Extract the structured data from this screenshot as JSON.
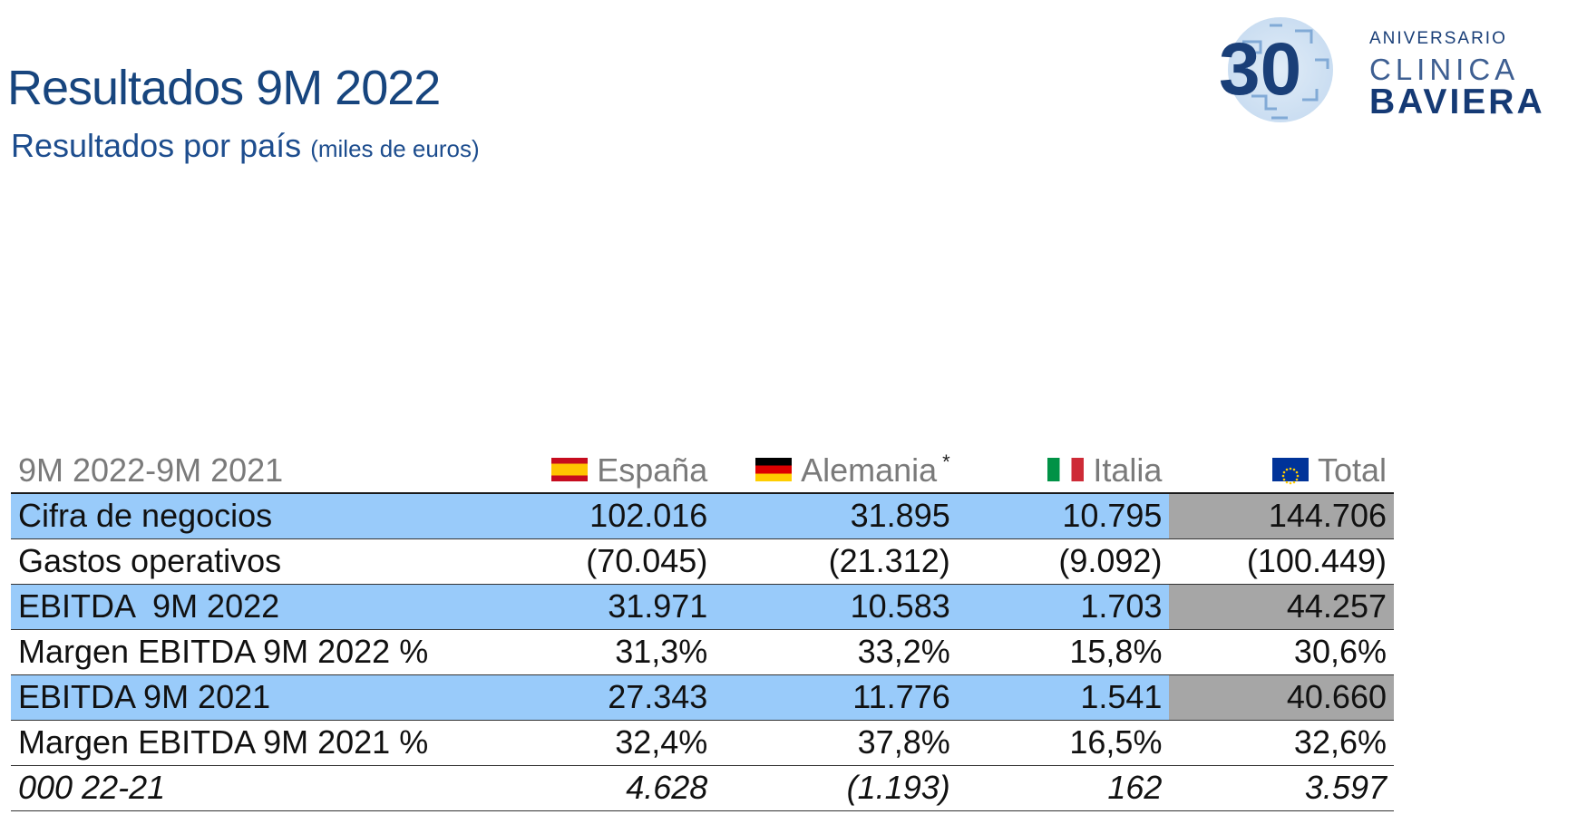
{
  "header": {
    "title": "Resultados 9M 2022",
    "subtitle": "Resultados por país",
    "unit": "(miles de euros)"
  },
  "logo": {
    "number": "30",
    "line1": "ANIVERSARIO",
    "line2": "CLINICA",
    "line3": "BAVIERA"
  },
  "colors": {
    "title": "#17457e",
    "highlight_row": "#99cbfa",
    "total_highlight": "#a6a6a6"
  },
  "table": {
    "period_label": "9M 2022-9M 2021",
    "columns": [
      {
        "label": "España",
        "flag": "spain-flag-icon"
      },
      {
        "label": "Alemania",
        "flag": "germany-flag-icon",
        "note": "*"
      },
      {
        "label": "Italia",
        "flag": "italy-flag-icon"
      },
      {
        "label": "Total",
        "flag": "eu-flag-icon"
      }
    ],
    "rows": [
      {
        "label": "Cifra de negocios",
        "values": [
          "102.016",
          "31.895",
          "10.795",
          "144.706"
        ]
      },
      {
        "label": "Gastos operativos",
        "values": [
          "(70.045)",
          "(21.312)",
          "(9.092)",
          "(100.449)"
        ]
      },
      {
        "label": "EBITDA  9M 2022",
        "values": [
          "31.971",
          "10.583",
          "1.703",
          "44.257"
        ]
      },
      {
        "label": "Margen EBITDA 9M 2022 %",
        "values": [
          "31,3%",
          "33,2%",
          "15,8%",
          "30,6%"
        ]
      },
      {
        "label": "EBITDA 9M 2021",
        "values": [
          "27.343",
          "11.776",
          "1.541",
          "40.660"
        ]
      },
      {
        "label": "Margen EBITDA 9M 2021 %",
        "values": [
          "32,4%",
          "37,8%",
          "16,5%",
          "32,6%"
        ]
      },
      {
        "label": "000 22-21",
        "values": [
          "4.628",
          "(1.193)",
          "162",
          "3.597"
        ]
      }
    ]
  }
}
